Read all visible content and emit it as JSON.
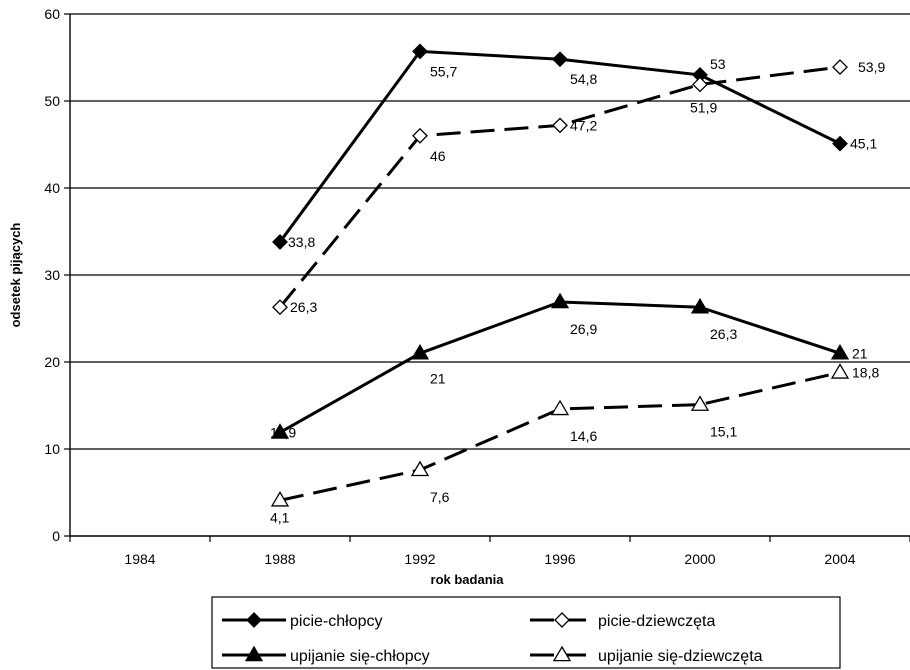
{
  "chart_data": {
    "type": "line",
    "xlabel": "rok badania",
    "ylabel": "odsetek pijących",
    "x": [
      "1984",
      "1988",
      "1992",
      "1996",
      "2000",
      "2004"
    ],
    "ylim": [
      0,
      60
    ],
    "yticks": [
      "0",
      "10",
      "20",
      "30",
      "40",
      "50",
      "60"
    ],
    "grid": "horizontal",
    "legend_position": "bottom",
    "series": [
      {
        "name": "picie-chłopcy",
        "style": "solid",
        "marker": "diamond-filled",
        "values": [
          null,
          33.8,
          55.7,
          54.8,
          53,
          45.1
        ],
        "labels": [
          null,
          "33,8",
          "55,7",
          "54,8",
          "53",
          "45,1"
        ]
      },
      {
        "name": "picie-dziewczęta",
        "style": "dashed",
        "marker": "diamond-open",
        "values": [
          null,
          26.3,
          46,
          47.2,
          51.9,
          53.9
        ],
        "labels": [
          null,
          "26,3",
          "46",
          "47,2",
          "51,9",
          "53,9"
        ]
      },
      {
        "name": "upijanie się-chłopcy",
        "style": "solid",
        "marker": "triangle-filled",
        "values": [
          null,
          11.9,
          21,
          26.9,
          26.3,
          21
        ],
        "labels": [
          null,
          "11,9",
          "21",
          "26,9",
          "26,3",
          "21"
        ]
      },
      {
        "name": "upijanie się-dziewczęta",
        "style": "dashed",
        "marker": "triangle-open",
        "values": [
          null,
          4.1,
          7.6,
          14.6,
          15.1,
          18.8
        ],
        "labels": [
          null,
          "4,1",
          "7,6",
          "14,6",
          "15,1",
          "18,8"
        ]
      }
    ]
  }
}
